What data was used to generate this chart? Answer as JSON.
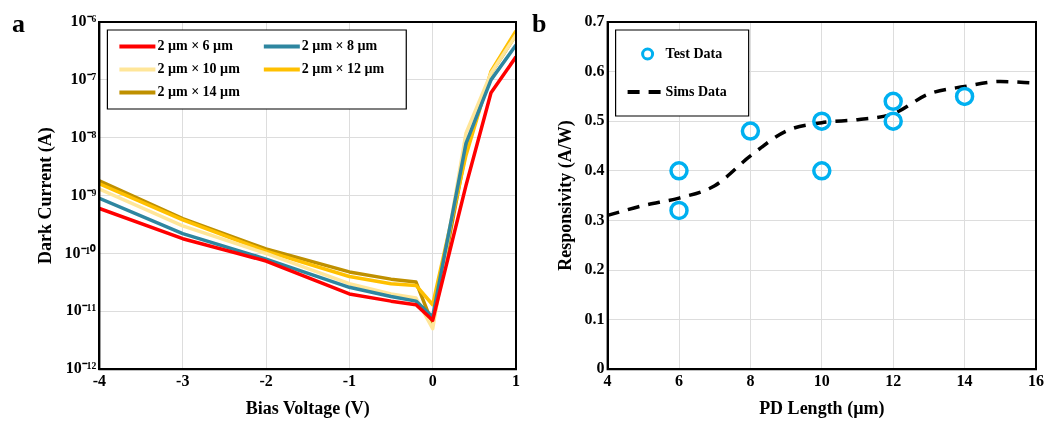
{
  "chart_data": [
    {
      "type": "line",
      "annotations": [
        "a"
      ],
      "xlabel": "Bias Voltage (V)",
      "ylabel": "Dark Current (A)",
      "log": "y",
      "grid": true,
      "legend": "top left",
      "xlim": [
        -4,
        1
      ],
      "xticks": [
        -4,
        -3,
        -2,
        -1,
        0,
        1
      ],
      "ylim": [
        1e-12,
        1e-06
      ],
      "yticks": [
        {
          "value": 1e-12,
          "label": "10⁻¹²"
        },
        {
          "value": 1e-11,
          "label": "10⁻¹¹"
        },
        {
          "value": 1e-10,
          "label": "10⁻¹⁰"
        },
        {
          "value": 1e-09,
          "label": "10⁻⁹"
        },
        {
          "value": 1e-08,
          "label": "10⁻⁸"
        },
        {
          "value": 1e-07,
          "label": "10⁻⁷"
        },
        {
          "value": 1e-06,
          "label": "10⁻⁶"
        }
      ],
      "x": [
        -4,
        -3,
        -2,
        -1,
        -0.5,
        -0.2,
        0,
        0.4,
        0.7,
        1
      ],
      "marker": "none",
      "line_style": "solid",
      "series": [
        {
          "name": "2 µm × 6 µm",
          "color": "#ff0000",
          "values": [
            6e-10,
            1.8e-10,
            7.4e-11,
            2e-11,
            1.5e-11,
            1.3e-11,
            7e-12,
            1.5e-09,
            6e-08,
            2.5e-07
          ]
        },
        {
          "name": "2 µm × 8 µm",
          "color": "#2e86a0",
          "values": [
            9e-10,
            2.2e-10,
            8e-11,
            2.6e-11,
            1.8e-11,
            1.5e-11,
            8e-12,
            8e-09,
            1e-07,
            4e-07
          ]
        },
        {
          "name": "2 µm × 10 µm",
          "color": "#ffe699",
          "values": [
            1.3e-09,
            3e-10,
            1e-10,
            3e-11,
            2e-11,
            1.7e-11,
            5e-12,
            1.2e-08,
            1.3e-07,
            6e-07
          ]
        },
        {
          "name": "2 µm × 12 µm",
          "color": "#ffc000",
          "values": [
            1.6e-09,
            3.8e-10,
            1.1e-10,
            4e-11,
            3e-11,
            2.8e-11,
            1.3e-11,
            5e-09,
            1.4e-07,
            7e-07
          ]
        },
        {
          "name": "2 µm × 14 µm",
          "color": "#bf9000",
          "values": [
            1.8e-09,
            4e-10,
            1.2e-10,
            4.8e-11,
            3.6e-11,
            3.2e-11,
            6e-12,
            6e-09,
            1.3e-07,
            6e-07
          ]
        }
      ]
    },
    {
      "type": "scatter",
      "annotations": [
        "b"
      ],
      "xlabel": "PD Length (µm)",
      "ylabel": "Responsivity (A/W)",
      "grid": true,
      "legend": "top left",
      "xlim": [
        4,
        16
      ],
      "xticks": [
        4,
        6,
        8,
        10,
        12,
        14,
        16
      ],
      "ylim": [
        0,
        0.7
      ],
      "yticks": [
        0,
        0.1,
        0.2,
        0.3,
        0.4,
        0.5,
        0.6,
        0.7
      ],
      "series": [
        {
          "name": "Test Data",
          "type": "scatter",
          "marker": "circle",
          "color": "#00b0f0",
          "x": [
            6,
            6,
            8,
            10,
            10,
            12,
            12,
            14
          ],
          "values": [
            0.4,
            0.32,
            0.48,
            0.5,
            0.4,
            0.54,
            0.5,
            0.55
          ]
        },
        {
          "name": "Sims Data",
          "type": "line",
          "marker": "none",
          "line_style": "dashed",
          "color": "#000000",
          "x": [
            4,
            5,
            6,
            7,
            8,
            9,
            10,
            11,
            12,
            13,
            14,
            15,
            16
          ],
          "values": [
            0.31,
            0.33,
            0.345,
            0.37,
            0.43,
            0.48,
            0.497,
            0.503,
            0.515,
            0.555,
            0.57,
            0.58,
            0.577
          ]
        }
      ]
    }
  ]
}
